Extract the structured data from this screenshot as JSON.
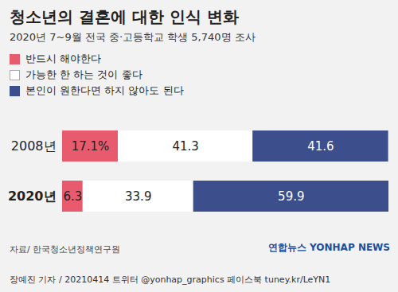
{
  "chart_data": {
    "type": "bar",
    "title": "청소년의 결혼에 대한 인식 변화",
    "subtitle": "2020년 7~9월 전국 중·고등학교 학생 5,740명 조사",
    "orientation": "horizontal",
    "stacked": true,
    "data_labels": true,
    "tick_labels": "y",
    "legend": "top-left",
    "categories": [
      "2008년",
      "2020년"
    ],
    "series": [
      {
        "name": "반드시 해야한다",
        "color": "#e85a6e",
        "values": [
          17.1,
          6.3
        ],
        "value_labels": [
          "17.1%",
          "6.3"
        ]
      },
      {
        "name": "가능한 한 하는 것이 좋다",
        "color": "#ffffff",
        "values": [
          41.3,
          33.9
        ]
      },
      {
        "name": "본인이 원한다면 하지 않아도 된다",
        "color": "#3d4e8c",
        "values": [
          41.6,
          59.9
        ]
      }
    ],
    "xlim": [
      0,
      100.1
    ],
    "xticks": [],
    "source": "자료/ 한국청소년정책연구원",
    "logo": [
      "연합뉴스",
      "YONHAP NEWS"
    ],
    "credit": "장예진 기자 / 20210414 트위터 @yonhap_graphics 페이스북 tuney.kr/LeYN1"
  }
}
